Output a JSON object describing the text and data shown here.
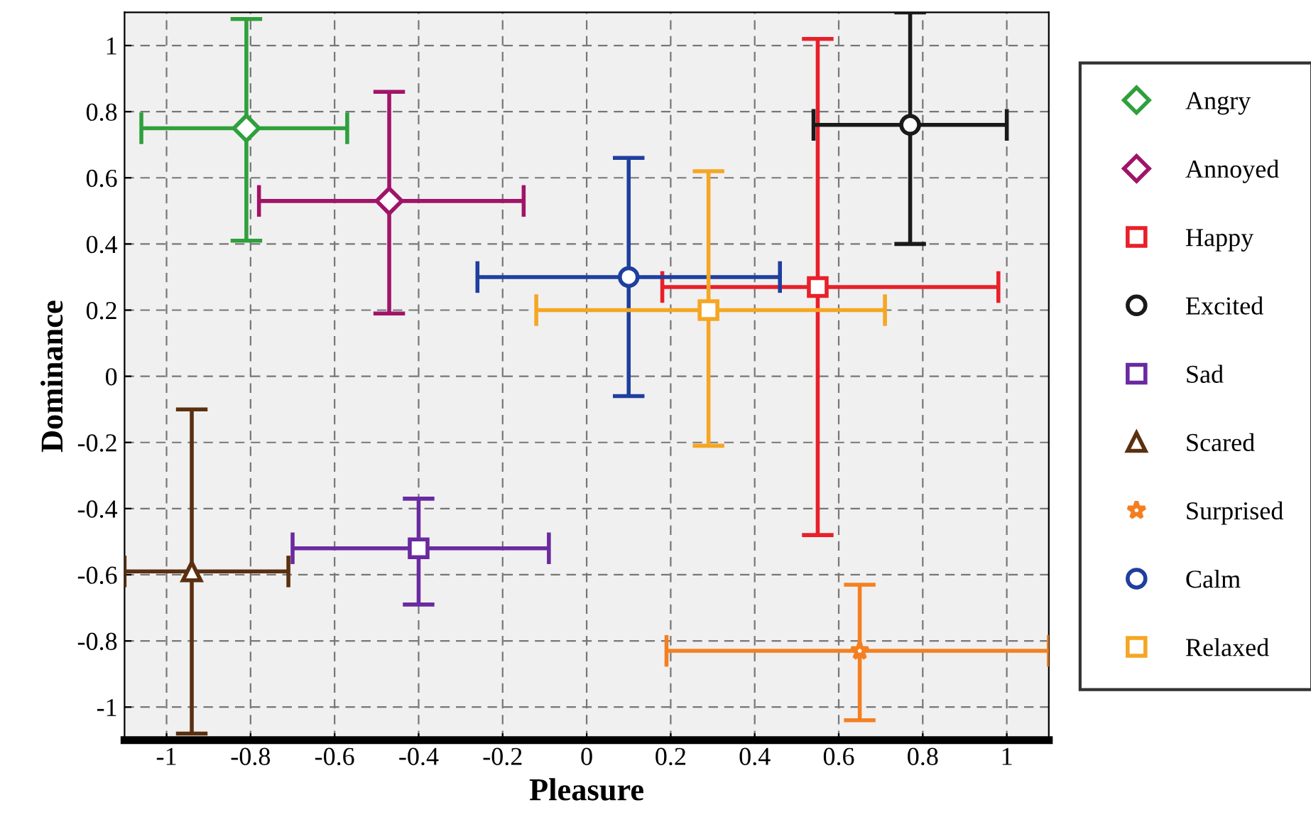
{
  "chart_data": {
    "type": "scatter",
    "xlabel": "Pleasure",
    "ylabel": "Dominance",
    "xlim": [
      -1.1,
      1.1
    ],
    "ylim": [
      -1.1,
      1.1
    ],
    "xticks": [
      -1,
      -0.8,
      -0.6,
      -0.4,
      -0.2,
      0,
      0.2,
      0.4,
      0.6,
      0.8,
      1
    ],
    "yticks": [
      -1,
      -0.8,
      -0.6,
      -0.4,
      -0.2,
      0,
      0.2,
      0.4,
      0.6,
      0.8,
      1
    ],
    "grid": true,
    "legend": "right",
    "series": [
      {
        "name": "Angry",
        "color": "#2ea03c",
        "marker": "diamond",
        "x": [
          -0.81
        ],
        "values": [
          0.75
        ],
        "xerrors": [
          [
            -1.06,
            -0.57
          ]
        ],
        "errors": [
          [
            0.41,
            1.08
          ]
        ]
      },
      {
        "name": "Annoyed",
        "color": "#a01468",
        "marker": "diamond",
        "x": [
          -0.47
        ],
        "values": [
          0.53
        ],
        "xerrors": [
          [
            -0.78,
            -0.15
          ]
        ],
        "errors": [
          [
            0.19,
            0.86
          ]
        ]
      },
      {
        "name": "Happy",
        "color": "#e8202a",
        "marker": "square",
        "x": [
          0.55
        ],
        "values": [
          0.27
        ],
        "xerrors": [
          [
            0.18,
            0.98
          ]
        ],
        "errors": [
          [
            -0.48,
            1.02
          ]
        ]
      },
      {
        "name": "Excited",
        "color": "#1a1a1a",
        "marker": "circle",
        "x": [
          0.77
        ],
        "values": [
          0.76
        ],
        "xerrors": [
          [
            0.54,
            1.0
          ]
        ],
        "errors": [
          [
            0.4,
            1.1
          ]
        ]
      },
      {
        "name": "Sad",
        "color": "#6a2aa0",
        "marker": "square",
        "x": [
          -0.4
        ],
        "values": [
          -0.52
        ],
        "xerrors": [
          [
            -0.7,
            -0.09
          ]
        ],
        "errors": [
          [
            -0.69,
            -0.37
          ]
        ]
      },
      {
        "name": "Scared",
        "color": "#5a3010",
        "marker": "triangle",
        "x": [
          -0.94
        ],
        "values": [
          -0.59
        ],
        "xerrors": [
          [
            -1.1,
            -0.71
          ]
        ],
        "errors": [
          [
            -1.08,
            -0.1
          ]
        ]
      },
      {
        "name": "Surprised",
        "color": "#f57f20",
        "marker": "star",
        "x": [
          0.65
        ],
        "values": [
          -0.83
        ],
        "xerrors": [
          [
            0.19,
            1.1
          ]
        ],
        "errors": [
          [
            -1.04,
            -0.63
          ]
        ]
      },
      {
        "name": "Calm",
        "color": "#1f3f9f",
        "marker": "circle",
        "x": [
          0.1
        ],
        "values": [
          0.3
        ],
        "xerrors": [
          [
            -0.26,
            0.46
          ]
        ],
        "errors": [
          [
            -0.06,
            0.66
          ]
        ]
      },
      {
        "name": "Relaxed",
        "color": "#f5a623",
        "marker": "square",
        "x": [
          0.29
        ],
        "values": [
          0.2
        ],
        "xerrors": [
          [
            -0.12,
            0.71
          ]
        ],
        "errors": [
          [
            -0.21,
            0.62
          ]
        ]
      }
    ]
  }
}
